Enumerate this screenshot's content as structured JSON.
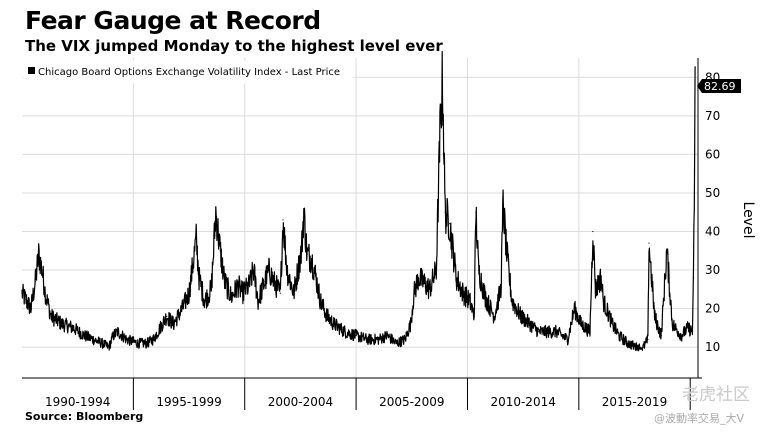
{
  "header": {
    "title": "Fear Gauge at Record",
    "subtitle": "The VIX jumped Monday to the highest level ever"
  },
  "footer": {
    "source": "Source: Bloomberg"
  },
  "watermark": {
    "line1": "老虎社区",
    "line2": "@波動率交易_大V"
  },
  "chart_data": {
    "type": "line",
    "legend_position": "top-left",
    "series": [
      {
        "name": "Chicago Board Options Exchange Volatility Index - Last Price",
        "color": "#000000",
        "x": [
          1990.0,
          1990.4,
          1990.6,
          1990.75,
          1990.9,
          1991.05,
          1991.3,
          1991.8,
          1992.3,
          1992.8,
          1993.2,
          1993.6,
          1993.9,
          1994.1,
          1994.3,
          1994.7,
          1995.2,
          1995.6,
          1995.9,
          1996.2,
          1996.5,
          1996.8,
          1997.2,
          1997.5,
          1997.82,
          1997.95,
          1998.2,
          1998.5,
          1998.7,
          1998.9,
          1999.1,
          1999.4,
          1999.7,
          1999.9,
          2000.2,
          2000.4,
          2000.6,
          2000.9,
          2001.1,
          2001.3,
          2001.6,
          2001.72,
          2001.9,
          2002.2,
          2002.55,
          2002.65,
          2002.8,
          2003.0,
          2003.2,
          2003.4,
          2003.7,
          2004.0,
          2004.5,
          2005.0,
          2005.5,
          2006.0,
          2006.4,
          2006.8,
          2007.2,
          2007.45,
          2007.6,
          2007.8,
          2008.0,
          2008.3,
          2008.6,
          2008.78,
          2008.88,
          2009.0,
          2009.2,
          2009.5,
          2009.8,
          2010.1,
          2010.3,
          2010.38,
          2010.5,
          2010.8,
          2011.2,
          2011.5,
          2011.6,
          2011.75,
          2012.0,
          2012.4,
          2012.8,
          2013.2,
          2013.6,
          2014.0,
          2014.5,
          2014.8,
          2015.1,
          2015.5,
          2015.63,
          2015.75,
          2016.0,
          2016.1,
          2016.5,
          2016.8,
          2017.2,
          2017.6,
          2017.9,
          2018.1,
          2018.15,
          2018.4,
          2018.7,
          2018.95,
          2019.2,
          2019.6,
          2019.9,
          2020.1,
          2020.15,
          2020.2,
          2020.22
        ],
        "y": [
          24,
          20,
          27,
          34,
          30,
          24,
          18,
          16,
          15,
          13,
          12,
          11,
          10,
          13,
          14,
          12,
          11,
          11,
          12,
          15,
          18,
          16,
          20,
          24,
          38,
          28,
          22,
          25,
          45,
          35,
          27,
          23,
          26,
          24,
          26,
          30,
          22,
          27,
          30,
          27,
          24,
          43,
          30,
          24,
          35,
          45,
          34,
          33,
          28,
          22,
          18,
          16,
          14,
          13,
          12,
          12,
          13,
          11,
          12,
          16,
          24,
          28,
          27,
          25,
          30,
          68,
          80,
          45,
          42,
          28,
          24,
          22,
          18,
          45,
          30,
          23,
          18,
          25,
          47,
          35,
          22,
          18,
          16,
          14,
          14,
          14,
          12,
          20,
          16,
          14,
          40,
          25,
          28,
          22,
          16,
          13,
          11,
          10,
          10,
          12,
          37,
          18,
          13,
          35,
          16,
          13,
          15,
          14,
          28,
          60,
          82.69
        ]
      }
    ],
    "last_value_label": "82.69",
    "xlabel": "",
    "ylabel": "Level",
    "xlim": [
      1990.0,
      2020.35
    ],
    "ylim": [
      2,
      85
    ],
    "y_ticks": [
      10,
      20,
      30,
      40,
      50,
      60,
      70,
      80
    ],
    "y_axis_position": "right",
    "x_categories": [
      "1990-1994",
      "1995-1999",
      "2000-2004",
      "2005-2009",
      "2010-2014",
      "2015-2019"
    ],
    "x_category_bounds": [
      [
        1990,
        1995
      ],
      [
        1995,
        2000
      ],
      [
        2000,
        2005
      ],
      [
        2005,
        2010
      ],
      [
        2010,
        2015
      ],
      [
        2015,
        2020
      ]
    ],
    "grid": true
  }
}
